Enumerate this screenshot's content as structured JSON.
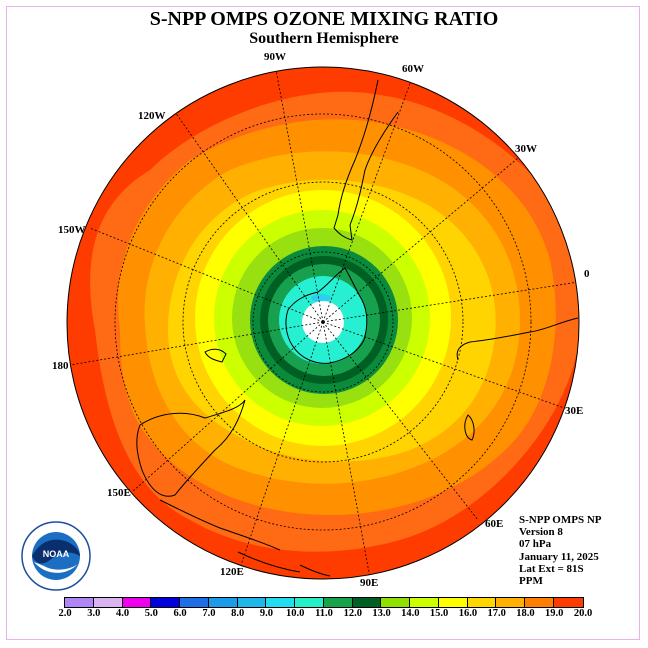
{
  "title": "S-NPP OMPS OZONE MIXING RATIO",
  "subtitle": "Southern Hemisphere",
  "longitude_labels": [
    "90W",
    "60W",
    "120W",
    "30W",
    "150W",
    "0",
    "180",
    "30E",
    "150E",
    "60E",
    "120E",
    "90E"
  ],
  "info": {
    "instrument": "S-NPP OMPS NP",
    "version": "Version 8",
    "pressure": "07 hPa",
    "date": "January 11, 2025",
    "lat_ext": "Lat Ext = 81S",
    "unit": "PPM"
  },
  "logo_text": "NOAA",
  "colorbar": {
    "ticks": [
      "2.0",
      "3.0",
      "4.0",
      "5.0",
      "6.0",
      "7.0",
      "8.0",
      "9.0",
      "10.0",
      "11.0",
      "12.0",
      "13.0",
      "14.0",
      "15.0",
      "16.0",
      "17.0",
      "18.0",
      "19.0",
      "20.0"
    ],
    "colors": [
      "#b085f5",
      "#d9b4f0",
      "#ee00ee",
      "#0000dd",
      "#1e6fe6",
      "#1c9be8",
      "#1fb7ea",
      "#22ddee",
      "#27f0c8",
      "#17a34a",
      "#0e7a37",
      "#005f23",
      "#90e000",
      "#ccff00",
      "#ffff00",
      "#ffd700",
      "#ffb000",
      "#ff8000",
      "#ff3c00",
      "#ff0000",
      "#8b5a3c"
    ]
  },
  "contour_colors": {
    "ppm_19": "#ff0000",
    "ppm_18": "#ff5a1e",
    "ppm_17": "#ff8c00",
    "ppm_16": "#ffaa00",
    "ppm_15": "#ffd200",
    "ppm_14": "#ffff00",
    "ppm_13": "#d2ff00",
    "ppm_12_5": "#a0e614",
    "ppm_12": "#0a8c3c",
    "ppm_11": "#005f23",
    "ppm_10": "#1aa35a",
    "ppm_9": "#27f0d2",
    "ppm_8": "#2ad0ee",
    "pole": "#ffffff"
  }
}
